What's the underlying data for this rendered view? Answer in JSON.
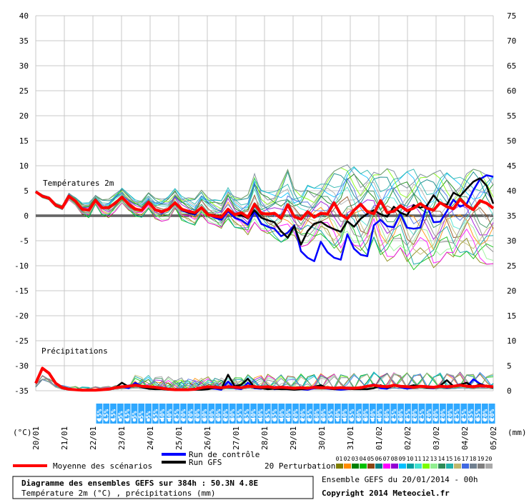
{
  "legend": {
    "mean": "Moyenne des scénarios",
    "control": "Run de contrôle",
    "gfs": "Run GFS",
    "perturbations": "20 Perturbations",
    "perturbation_ids": [
      "01",
      "02",
      "03",
      "04",
      "05",
      "06",
      "07",
      "08",
      "09",
      "10",
      "11",
      "12",
      "13",
      "14",
      "15",
      "16",
      "17",
      "18",
      "19",
      "20"
    ],
    "perturbation_colors": [
      "#808000",
      "#ff8c00",
      "#008000",
      "#00c000",
      "#8b4513",
      "#008080",
      "#ff00ff",
      "#9400d3",
      "#00bfff",
      "#00a0a0",
      "#40e0d0",
      "#7cfc00",
      "#90ee90",
      "#2e8b57",
      "#20b2aa",
      "#bdb76b",
      "#4169e1",
      "#708090",
      "#808080",
      "#a9a9a9"
    ]
  },
  "footer": {
    "title": "Diagramme des ensembles GEFS sur 384h : 50.3N 4.8E",
    "subtitle": "Température 2m (°C) , précipitations (mm)",
    "ensemble": "Ensemble GEFS du 20/01/2014 - 00h",
    "copyright": "Copyright 2014 Meteociel.fr"
  },
  "chart_data": {
    "type": "line",
    "sections": {
      "temperature_label": "Températures 2m",
      "precip_label": "Précipitations"
    },
    "axes": {
      "left_unit": "(°C)",
      "right_unit": "(mm)",
      "left_ticks": [
        40,
        35,
        30,
        25,
        20,
        15,
        10,
        5,
        0,
        -5,
        -10,
        -15,
        -20,
        -25,
        -30,
        -35
      ],
      "right_ticks": [
        75,
        70,
        65,
        60,
        55,
        50,
        45,
        40,
        35,
        30,
        25,
        20,
        15,
        10,
        5,
        0
      ],
      "ylim_left": [
        -35,
        40
      ],
      "ylim_right": [
        0,
        75
      ]
    },
    "x_dates": [
      "20/01",
      "21/01",
      "22/01",
      "23/01",
      "24/01",
      "25/01",
      "26/01",
      "27/01",
      "28/01",
      "29/01",
      "30/01",
      "31/01",
      "01/02",
      "02/02",
      "03/02",
      "04/02",
      "05/02"
    ],
    "precip_probability": [
      "15%",
      "15%",
      "15%",
      "5%",
      "15%",
      "5%",
      "5%",
      "5%",
      "55%",
      "40%",
      "40%",
      "25%",
      "20%",
      "20%",
      "20%",
      "30%",
      "30%",
      "30%",
      "20%",
      "30%",
      "35%",
      "35%",
      "40%",
      "40%",
      "35%",
      "35%",
      "40%",
      "40%",
      "20%",
      "20%",
      "25%",
      "30%",
      "30%",
      "35%",
      "40%",
      "40%",
      "35%",
      "30%",
      "30%",
      "40%",
      "40%",
      "30%",
      "25%",
      "30%",
      "25%",
      "20%",
      "25%",
      "20%",
      "20%",
      "20%",
      "20%",
      "25%",
      "25%",
      "35%",
      "35%",
      "20%",
      "20%"
    ],
    "series": [
      {
        "name": "Moyenne des scénarios",
        "color": "#ff0000",
        "temperature": [
          4.8,
          3.9,
          3.5,
          2.1,
          1.6,
          3.9,
          2.9,
          1.3,
          1.1,
          3.1,
          1.6,
          1.6,
          2.5,
          3.7,
          2.3,
          1.3,
          1.1,
          2.7,
          1.2,
          0.8,
          1.3,
          2.6,
          1.3,
          0.9,
          0.6,
          1.6,
          0.2,
          -0.1,
          -0.3,
          1.3,
          0.2,
          0.6,
          -0.3,
          2.3,
          0.5,
          0.3,
          0.5,
          -0.5,
          2.2,
          -0.2,
          -0.7,
          0.8,
          -0.3,
          0.5,
          0.3,
          2.6,
          0.2,
          -0.6,
          1.1,
          2.3,
          0.8,
          0.4,
          3.0,
          0.6,
          0.9,
          2.0,
          1.0,
          1.5,
          2.4,
          1.5,
          1.1,
          2.6,
          1.8,
          1.4,
          3.3,
          2.0,
          1.2,
          3.0,
          2.5,
          1.5
        ],
        "precip": [
          1.5,
          4.5,
          3.5,
          1.5,
          0.6,
          0.3,
          0.2,
          0.1,
          0.1,
          0.1,
          0.2,
          0.3,
          0.6,
          0.8,
          0.9,
          1.1,
          0.9,
          0.8,
          0.7,
          0.5,
          0.3,
          0.2,
          0.2,
          0.2,
          0.3,
          0.6,
          0.8,
          0.7,
          0.6,
          0.8,
          0.7,
          0.6,
          0.9,
          0.8,
          0.7,
          0.8,
          0.6,
          0.7,
          0.6,
          0.5,
          0.6,
          0.5,
          0.7,
          0.6,
          0.6,
          0.5,
          0.6,
          0.5,
          0.5,
          0.6,
          0.9,
          1.1,
          0.9,
          0.8,
          1.1,
          0.9,
          0.8,
          0.7,
          0.9,
          0.8,
          0.7,
          0.9,
          0.8,
          0.9,
          1.1,
          0.9,
          0.8,
          1.0,
          0.9,
          0.8
        ]
      },
      {
        "name": "Run de contrôle",
        "color": "#0000ff",
        "temperature": [
          4.8,
          3.9,
          3.5,
          2.1,
          1.6,
          3.9,
          2.9,
          1.3,
          1.1,
          3.1,
          1.6,
          1.6,
          2.5,
          3.7,
          2.3,
          1.3,
          1.1,
          2.6,
          1.2,
          0.6,
          1.3,
          2.6,
          1.1,
          0.6,
          0.2,
          1.6,
          0.2,
          -0.4,
          -0.8,
          0.9,
          -0.4,
          -0.9,
          -1.8,
          0.8,
          -1.6,
          -2.2,
          -2.6,
          -4.1,
          -3.4,
          -1.9,
          -7.1,
          -8.4,
          -9.1,
          -5.2,
          -7.3,
          -8.4,
          -8.8,
          -3.7,
          -6.6,
          -7.8,
          -8.1,
          -1.9,
          -0.8,
          -2.1,
          -2.3,
          0.4,
          -2.4,
          -2.6,
          -2.4,
          2.1,
          -1.3,
          -1.2,
          0.9,
          3.2,
          1.8,
          2.4,
          5.1,
          7.3,
          8.1,
          7.8
        ],
        "precip": [
          1.5,
          4.5,
          3.5,
          1.5,
          0.6,
          0.3,
          0.2,
          0.1,
          0.1,
          0.1,
          0.2,
          0.3,
          0.6,
          0.8,
          0.5,
          1.6,
          0.9,
          0.5,
          0.4,
          0.4,
          0.3,
          0.2,
          0.2,
          0.2,
          0.2,
          0.3,
          0.5,
          0.4,
          0.2,
          1.8,
          0.5,
          0.3,
          1.6,
          0.5,
          0.4,
          0.8,
          0.3,
          0.4,
          0.3,
          0.3,
          0.3,
          0.2,
          0.5,
          0.6,
          0.4,
          0.3,
          0.2,
          0.3,
          0.4,
          0.3,
          0.9,
          1.3,
          0.5,
          0.4,
          1.1,
          0.7,
          0.4,
          0.6,
          0.9,
          0.6,
          0.5,
          1.0,
          0.6,
          0.9,
          1.3,
          0.8,
          2.3,
          1.4,
          0.9,
          0.6
        ]
      },
      {
        "name": "Run GFS",
        "color": "#000000",
        "temperature": [
          4.8,
          3.9,
          3.5,
          2.1,
          1.6,
          3.9,
          2.9,
          1.3,
          1.1,
          3.1,
          1.6,
          1.6,
          2.5,
          3.7,
          2.3,
          1.3,
          1.1,
          2.7,
          1.2,
          0.7,
          1.4,
          2.6,
          1.2,
          0.7,
          0.4,
          1.6,
          0.3,
          0.1,
          -0.2,
          1.3,
          0.2,
          0.1,
          -0.5,
          1.1,
          -0.4,
          -0.9,
          -1.3,
          -3.1,
          -4.4,
          -2.1,
          -5.8,
          -3.1,
          -1.6,
          -1.2,
          -2.1,
          -2.7,
          -3.2,
          -1.1,
          -2.2,
          -0.6,
          0.4,
          1.1,
          0.3,
          -0.2,
          1.8,
          0.6,
          0.1,
          2.1,
          1.6,
          2.0,
          4.1,
          2.5,
          2.2,
          4.6,
          3.9,
          5.4,
          6.8,
          7.5,
          6.0,
          2.4
        ],
        "precip": [
          1.5,
          4.5,
          3.5,
          1.5,
          0.6,
          0.3,
          0.2,
          0.1,
          0.1,
          0.1,
          0.2,
          0.3,
          0.6,
          1.6,
          0.8,
          1.2,
          0.7,
          0.4,
          0.3,
          0.3,
          0.2,
          0.2,
          0.2,
          0.2,
          0.2,
          0.2,
          0.3,
          0.6,
          0.4,
          3.2,
          0.9,
          1.2,
          2.4,
          0.6,
          0.5,
          0.3,
          0.4,
          0.3,
          0.3,
          0.2,
          0.3,
          0.4,
          0.8,
          1.1,
          0.5,
          0.3,
          0.5,
          0.4,
          0.3,
          0.3,
          0.3,
          0.5,
          1.1,
          0.6,
          1.0,
          0.9,
          0.8,
          1.1,
          0.9,
          0.6,
          0.6,
          1.0,
          2.1,
          0.9,
          1.2,
          1.6,
          0.7,
          1.3,
          0.9,
          0.6
        ]
      }
    ],
    "perturbation_temp_spread": {
      "min": [
        4.6,
        3.6,
        3.2,
        1.8,
        1.2,
        3.2,
        2.1,
        0.3,
        -0.4,
        2.3,
        0.1,
        -0.4,
        0.9,
        2.6,
        1.1,
        -0.1,
        -0.3,
        1.4,
        -0.6,
        -1.1,
        -0.8,
        1.4,
        -0.9,
        -1.4,
        -1.9,
        0.1,
        -1.4,
        -1.8,
        -2.6,
        -0.6,
        -2.3,
        -2.6,
        -3.8,
        -1.3,
        -2.9,
        -3.7,
        -4.4,
        -5.3,
        -4.6,
        -3.9,
        -6.2,
        -5.8,
        -4.7,
        -3.6,
        -4.8,
        -6.5,
        -7.4,
        -4.1,
        -5.9,
        -7.3,
        -7.9,
        -4.3,
        -7.8,
        -9.1,
        -8.2,
        -6.4,
        -9.6,
        -10.8,
        -9.4,
        -8.6,
        -10.4,
        -9.1,
        -7.3,
        -8.7,
        -8.2,
        -7.1,
        -8.6,
        -9.3,
        -9.7,
        -9.6
      ],
      "max": [
        5.0,
        4.2,
        3.8,
        2.5,
        2.0,
        4.5,
        3.6,
        2.5,
        2.6,
        4.1,
        3.2,
        3.3,
        4.4,
        5.5,
        4.3,
        3.2,
        3.0,
        4.6,
        3.5,
        3.3,
        3.8,
        5.4,
        3.9,
        3.6,
        3.4,
        5.1,
        3.6,
        3.2,
        3.0,
        5.6,
        3.8,
        3.4,
        4.2,
        8.4,
        5.1,
        4.6,
        4.8,
        6.4,
        9.2,
        5.3,
        4.8,
        6.1,
        5.5,
        6.3,
        7.4,
        8.9,
        9.6,
        10.2,
        9.8,
        8.4,
        9.1,
        8.7,
        8.2,
        9.4,
        8.9,
        7.6,
        8.8,
        9.3,
        8.3,
        7.7,
        8.5,
        9.1,
        8.6,
        7.4,
        7.7,
        8.4,
        9.3,
        8.9,
        8.1,
        7.9
      ]
    }
  }
}
